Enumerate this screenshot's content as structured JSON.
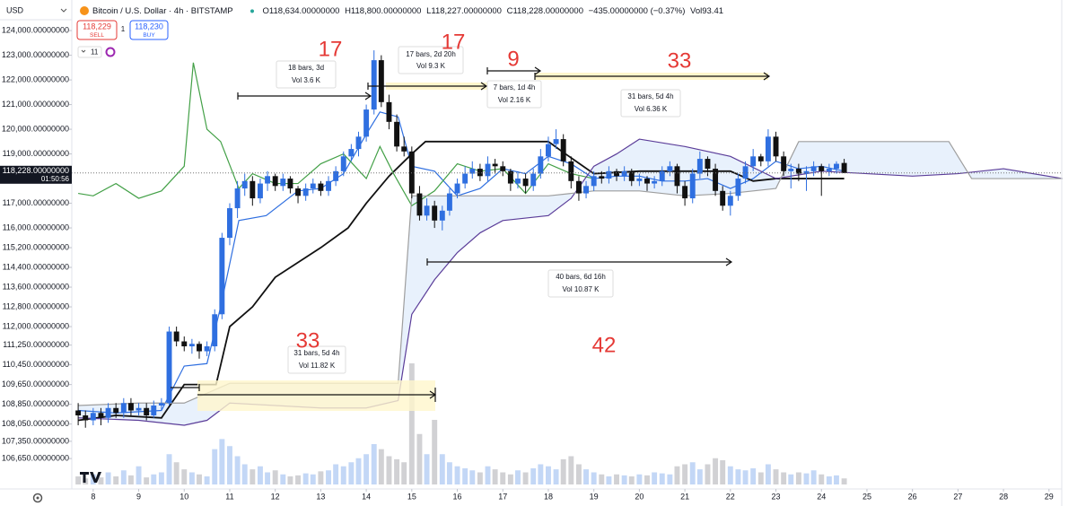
{
  "header": {
    "currency": "USD",
    "symbol": "Bitcoin / U.S. Dollar · 4h · BITSTAMP",
    "open": "O118,634.00000000",
    "high": "H118,800.00000000",
    "low": "L118,227.00000000",
    "close": "C118,228.00000000",
    "change": "−435.00000000 (−0.37%)",
    "volume": "Vol93.41",
    "sell_price": "118,229",
    "sell": "SELL",
    "spread": "1",
    "buy_price": "118,230",
    "buy": "BUY",
    "indicators": "11",
    "price_label": "118,228.00000000",
    "countdown": "01:50:56"
  },
  "chart_data": {
    "type": "candlestick",
    "up_color": "#2f6fe0",
    "down_color": "#111111",
    "volume_up_color": "#b9d0f5",
    "volume_down_color": "#c9c9cc",
    "xlim": [
      7.53,
      29.28
    ],
    "xticks": [
      8,
      9,
      10,
      11,
      12,
      13,
      14,
      15,
      16,
      17,
      18,
      19,
      20,
      21,
      22,
      23,
      24,
      25,
      26,
      27,
      28,
      29
    ],
    "ylim": [
      105600,
      125240
    ],
    "yticks": [
      {
        "value": 124000,
        "label": "124,000.00000000"
      },
      {
        "value": 123000,
        "label": "123,000.00000000"
      },
      {
        "value": 122000,
        "label": "122,000.00000000"
      },
      {
        "value": 121000,
        "label": "121,000.00000000"
      },
      {
        "value": 120000,
        "label": "120,000.00000000"
      },
      {
        "value": 119000,
        "label": "119,000.00000000"
      },
      {
        "value": 117000,
        "label": "117,000.00000000"
      },
      {
        "value": 116000,
        "label": "116,000.00000000"
      },
      {
        "value": 115200,
        "label": "115,200.00000000"
      },
      {
        "value": 114400,
        "label": "114,400.00000000"
      },
      {
        "value": 113600,
        "label": "113,600.00000000"
      },
      {
        "value": 112800,
        "label": "112,800.00000000"
      },
      {
        "value": 112000,
        "label": "112,000.00000000"
      },
      {
        "value": 111250,
        "label": "111,250.00000000"
      },
      {
        "value": 110450,
        "label": "110,450.00000000"
      },
      {
        "value": 109650,
        "label": "109,650.00000000"
      },
      {
        "value": 108850,
        "label": "108,850.00000000"
      },
      {
        "value": 108050,
        "label": "108,050.00000000"
      },
      {
        "value": 107350,
        "label": "107,350.00000000"
      },
      {
        "value": 106650,
        "label": "106,650.00000000"
      }
    ],
    "grid": false,
    "x": [
      7.67,
      7.83,
      8,
      8.17,
      8.33,
      8.5,
      8.67,
      8.83,
      9,
      9.17,
      9.33,
      9.5,
      9.67,
      9.83,
      10,
      10.17,
      10.33,
      10.5,
      10.67,
      10.83,
      11,
      11.17,
      11.33,
      11.5,
      11.67,
      11.83,
      12,
      12.17,
      12.33,
      12.5,
      12.67,
      12.83,
      13,
      13.17,
      13.33,
      13.5,
      13.67,
      13.83,
      14,
      14.17,
      14.33,
      14.5,
      14.67,
      14.83,
      15,
      15.17,
      15.33,
      15.5,
      15.67,
      15.83,
      16,
      16.17,
      16.33,
      16.5,
      16.67,
      16.83,
      17,
      17.17,
      17.33,
      17.5,
      17.67,
      17.83,
      18,
      18.17,
      18.33,
      18.5,
      18.67,
      18.83,
      19,
      19.17,
      19.33,
      19.5,
      19.67,
      19.83,
      20,
      20.17,
      20.33,
      20.5,
      20.67,
      20.83,
      21,
      21.17,
      21.33,
      21.5,
      21.67,
      21.83,
      22,
      22.17,
      22.33,
      22.5,
      22.67,
      22.83,
      23,
      23.17,
      23.33,
      23.5,
      23.67,
      23.83,
      24,
      24.17,
      24.33,
      24.5
    ],
    "candles": [
      [
        108600,
        108900,
        108000,
        108400
      ],
      [
        108400,
        108600,
        107900,
        108200
      ],
      [
        108200,
        108700,
        108000,
        108500
      ],
      [
        108500,
        108700,
        108000,
        108300
      ],
      [
        108300,
        108900,
        108100,
        108700
      ],
      [
        108700,
        108900,
        108300,
        108500
      ],
      [
        108500,
        109100,
        108300,
        108900
      ],
      [
        108900,
        109100,
        108400,
        108600
      ],
      [
        108600,
        108900,
        108400,
        108700
      ],
      [
        108700,
        108900,
        108200,
        108400
      ],
      [
        108400,
        109000,
        108300,
        108800
      ],
      [
        108800,
        109100,
        108600,
        108900
      ],
      [
        108900,
        112000,
        108800,
        111800
      ],
      [
        111800,
        112000,
        111200,
        111400
      ],
      [
        111400,
        111600,
        111000,
        111200
      ],
      [
        111200,
        111500,
        110900,
        111300
      ],
      [
        111300,
        111400,
        110700,
        111000
      ],
      [
        111000,
        111400,
        110800,
        111200
      ],
      [
        111200,
        112700,
        111000,
        112500
      ],
      [
        112500,
        115800,
        112300,
        115600
      ],
      [
        115600,
        117000,
        115300,
        116800
      ],
      [
        116800,
        117900,
        116400,
        117600
      ],
      [
        117600,
        118200,
        117300,
        117900
      ],
      [
        117900,
        118100,
        116900,
        117200
      ],
      [
        117200,
        118000,
        117000,
        117800
      ],
      [
        117800,
        118300,
        117500,
        118100
      ],
      [
        118100,
        118200,
        117500,
        117700
      ],
      [
        117700,
        118200,
        117500,
        118000
      ],
      [
        118000,
        118100,
        117400,
        117600
      ],
      [
        117600,
        117700,
        117000,
        117300
      ],
      [
        117300,
        117800,
        117100,
        117600
      ],
      [
        117600,
        118000,
        117400,
        117800
      ],
      [
        117800,
        117900,
        117300,
        117500
      ],
      [
        117500,
        118100,
        117300,
        117900
      ],
      [
        117900,
        118500,
        117700,
        118300
      ],
      [
        118300,
        119100,
        118100,
        118900
      ],
      [
        118900,
        119400,
        118700,
        119200
      ],
      [
        119200,
        119900,
        118900,
        119700
      ],
      [
        119700,
        121000,
        119500,
        120800
      ],
      [
        120800,
        123200,
        120600,
        122800
      ],
      [
        122800,
        123000,
        120900,
        121100
      ],
      [
        121100,
        121400,
        120000,
        120300
      ],
      [
        120300,
        120600,
        119100,
        119300
      ],
      [
        119300,
        119700,
        118900,
        119100
      ],
      [
        119100,
        119300,
        117200,
        117400
      ],
      [
        117400,
        117700,
        116300,
        116500
      ],
      [
        116500,
        117200,
        116300,
        116900
      ],
      [
        116900,
        117100,
        116000,
        116300
      ],
      [
        116300,
        116900,
        115900,
        116700
      ],
      [
        116700,
        117600,
        116500,
        117400
      ],
      [
        117400,
        118000,
        117200,
        117800
      ],
      [
        117800,
        118500,
        117600,
        118200
      ],
      [
        118200,
        118700,
        118000,
        118400
      ],
      [
        118400,
        118600,
        117900,
        118100
      ],
      [
        118100,
        118900,
        117900,
        118600
      ],
      [
        118600,
        118800,
        118200,
        118500
      ],
      [
        118500,
        118700,
        118100,
        118300
      ],
      [
        118300,
        118400,
        117500,
        117800
      ],
      [
        117800,
        118300,
        117600,
        118000
      ],
      [
        118000,
        118200,
        117400,
        117700
      ],
      [
        117700,
        118400,
        117500,
        118200
      ],
      [
        118200,
        119200,
        118000,
        118900
      ],
      [
        118900,
        119700,
        118700,
        119400
      ],
      [
        119400,
        120000,
        119200,
        119600
      ],
      [
        119600,
        119800,
        118500,
        118700
      ],
      [
        118700,
        118900,
        117600,
        117900
      ],
      [
        117900,
        118100,
        117100,
        117400
      ],
      [
        117400,
        117900,
        117200,
        117700
      ],
      [
        117700,
        118300,
        117500,
        118100
      ],
      [
        118100,
        118300,
        117800,
        118000
      ],
      [
        118000,
        118500,
        117800,
        118300
      ],
      [
        118300,
        118400,
        117900,
        118100
      ],
      [
        118100,
        118500,
        117900,
        118300
      ],
      [
        118300,
        118400,
        117700,
        117900
      ],
      [
        117900,
        118200,
        117700,
        118000
      ],
      [
        118000,
        118100,
        117500,
        117800
      ],
      [
        117800,
        118100,
        117600,
        117900
      ],
      [
        117900,
        118500,
        117700,
        118300
      ],
      [
        118300,
        118700,
        118100,
        118500
      ],
      [
        118500,
        118600,
        117400,
        117700
      ],
      [
        117700,
        117900,
        116900,
        117200
      ],
      [
        117200,
        118400,
        117000,
        118200
      ],
      [
        118200,
        119100,
        118000,
        118800
      ],
      [
        118800,
        118900,
        118100,
        118400
      ],
      [
        118400,
        118600,
        117300,
        117500
      ],
      [
        117500,
        117700,
        116700,
        116900
      ],
      [
        116900,
        117500,
        116500,
        117300
      ],
      [
        117300,
        118200,
        117100,
        118000
      ],
      [
        118000,
        118700,
        117800,
        118500
      ],
      [
        118500,
        119200,
        118300,
        118900
      ],
      [
        118900,
        119000,
        118500,
        118700
      ],
      [
        118700,
        120000,
        118500,
        119700
      ],
      [
        119700,
        119900,
        118700,
        118900
      ],
      [
        118900,
        119100,
        118100,
        118300
      ],
      [
        118300,
        118600,
        117600,
        118400
      ],
      [
        118400,
        118600,
        117900,
        118200
      ],
      [
        118200,
        118500,
        117500,
        118300
      ],
      [
        118300,
        118700,
        118100,
        118500
      ],
      [
        118500,
        118600,
        117300,
        118300
      ],
      [
        118300,
        118600,
        118100,
        118400
      ],
      [
        118400,
        118700,
        118200,
        118600
      ],
      [
        118634,
        118800,
        118227,
        118228
      ]
    ],
    "volume": [
      8,
      6,
      10,
      7,
      12,
      8,
      14,
      9,
      18,
      7,
      10,
      12,
      30,
      22,
      15,
      12,
      10,
      8,
      35,
      45,
      38,
      28,
      20,
      15,
      18,
      12,
      14,
      10,
      8,
      9,
      11,
      10,
      13,
      14,
      20,
      18,
      22,
      26,
      30,
      40,
      35,
      28,
      25,
      22,
      120,
      50,
      30,
      64,
      30,
      22,
      18,
      16,
      14,
      12,
      18,
      15,
      12,
      10,
      14,
      12,
      16,
      20,
      18,
      15,
      25,
      28,
      20,
      15,
      12,
      10,
      8,
      10,
      9,
      8,
      10,
      9,
      12,
      11,
      10,
      18,
      20,
      22,
      15,
      20,
      26,
      24,
      18,
      15,
      14,
      16,
      12,
      20,
      15,
      12,
      10,
      12,
      11,
      14,
      10,
      8,
      9,
      6
    ],
    "lines": [
      {
        "color": "#2f6fe0",
        "x": [
          7.67,
          8.5,
          9.5,
          10,
          10.5,
          10.8,
          11.2,
          11.8,
          12.5,
          13,
          13.5,
          14,
          14.3,
          14.7,
          15,
          15.5,
          16,
          16.5,
          17,
          17.5,
          18,
          18.5,
          19,
          19.5,
          20,
          20.5,
          21,
          21.5,
          22,
          22.5,
          23,
          23.5,
          24,
          24.5
        ],
        "values": [
          108600,
          108500,
          108600,
          110400,
          110500,
          112800,
          116300,
          116500,
          117500,
          117600,
          118200,
          119800,
          120700,
          120500,
          118500,
          118300,
          117300,
          117600,
          118400,
          118200,
          118900,
          118600,
          118000,
          118100,
          118100,
          117900,
          117900,
          118000,
          117600,
          118000,
          118700,
          118400,
          118500,
          118300
        ]
      },
      {
        "color": "#111111",
        "x": [
          7.67,
          8.5,
          9.5,
          10,
          10.7,
          11,
          11.5,
          12,
          13,
          13.6,
          14,
          14.5,
          15,
          15.3,
          16,
          17,
          18,
          18.3,
          19,
          20,
          21,
          22,
          22.5,
          23,
          24,
          24.5
        ],
        "values": [
          108200,
          108400,
          108300,
          109650,
          109650,
          112000,
          112800,
          114000,
          115200,
          116000,
          117000,
          118100,
          119000,
          119500,
          119500,
          119500,
          119500,
          119100,
          118200,
          118300,
          118300,
          118300,
          117900,
          118000,
          118000,
          118000
        ]
      },
      {
        "color": "#43a047",
        "x": [
          7.67,
          8,
          8.5,
          9,
          9.5,
          10,
          10.2,
          10.5,
          10.8,
          11.2,
          11.5,
          12,
          12.5,
          13,
          13.5,
          14,
          14.3,
          14.6,
          15,
          15.5,
          16,
          16.5,
          17,
          17.5,
          18,
          18.5,
          19
        ],
        "values": [
          117400,
          117300,
          117800,
          117200,
          117500,
          118500,
          122700,
          120000,
          119500,
          117600,
          118200,
          117800,
          117800,
          118600,
          119000,
          118000,
          119300,
          118200,
          116900,
          117500,
          118600,
          118300,
          118400,
          117400,
          118600,
          118200,
          118000
        ]
      },
      {
        "color": "#5b3d99",
        "x": [
          7.67,
          9,
          10,
          10.5,
          11,
          12,
          13,
          14,
          14.7,
          15,
          15.5,
          16,
          16.5,
          17,
          17.5,
          18,
          18.5,
          19,
          19.5,
          20,
          21,
          22,
          23,
          24,
          25,
          26,
          27,
          28,
          29.3
        ],
        "values": [
          108300,
          108200,
          108000,
          108200,
          108900,
          108800,
          108700,
          108700,
          109000,
          112500,
          113900,
          115000,
          115800,
          116300,
          116400,
          116500,
          117200,
          118500,
          119000,
          119600,
          119300,
          118900,
          118000,
          118300,
          118200,
          118100,
          118200,
          118400,
          118000
        ]
      },
      {
        "color": "#9e9e9e",
        "x": [
          7.67,
          9,
          10,
          11,
          12,
          13,
          13.7,
          14.7,
          15,
          16,
          17,
          18,
          19,
          20,
          21,
          22,
          23,
          23.5,
          24,
          25,
          26,
          26.8,
          27.3,
          28,
          29.3
        ],
        "values": [
          108800,
          108900,
          108900,
          109700,
          109700,
          109700,
          109700,
          109700,
          117300,
          117300,
          117300,
          117300,
          117500,
          117500,
          117300,
          117400,
          117600,
          119500,
          119500,
          119500,
          119500,
          119500,
          118000,
          118000,
          118000
        ]
      }
    ],
    "annotations": {
      "counts": [
        17,
        17,
        9,
        33,
        33,
        42
      ],
      "measures": [
        {
          "bars": "18 bars, 3d",
          "vol": "Vol 3.6 K"
        },
        {
          "bars": "17 bars, 2d 20h",
          "vol": "Vol 9.3 K"
        },
        {
          "bars": "7 bars, 1d 4h",
          "vol": "Vol 2.16 K"
        },
        {
          "bars": "31 bars, 5d 4h",
          "vol": "Vol 6.36 K"
        },
        {
          "bars": "40 bars, 6d 16h",
          "vol": "Vol 10.87 K"
        },
        {
          "bars": "31 bars, 5d 4h",
          "vol": "Vol 11.82 K"
        }
      ]
    }
  }
}
